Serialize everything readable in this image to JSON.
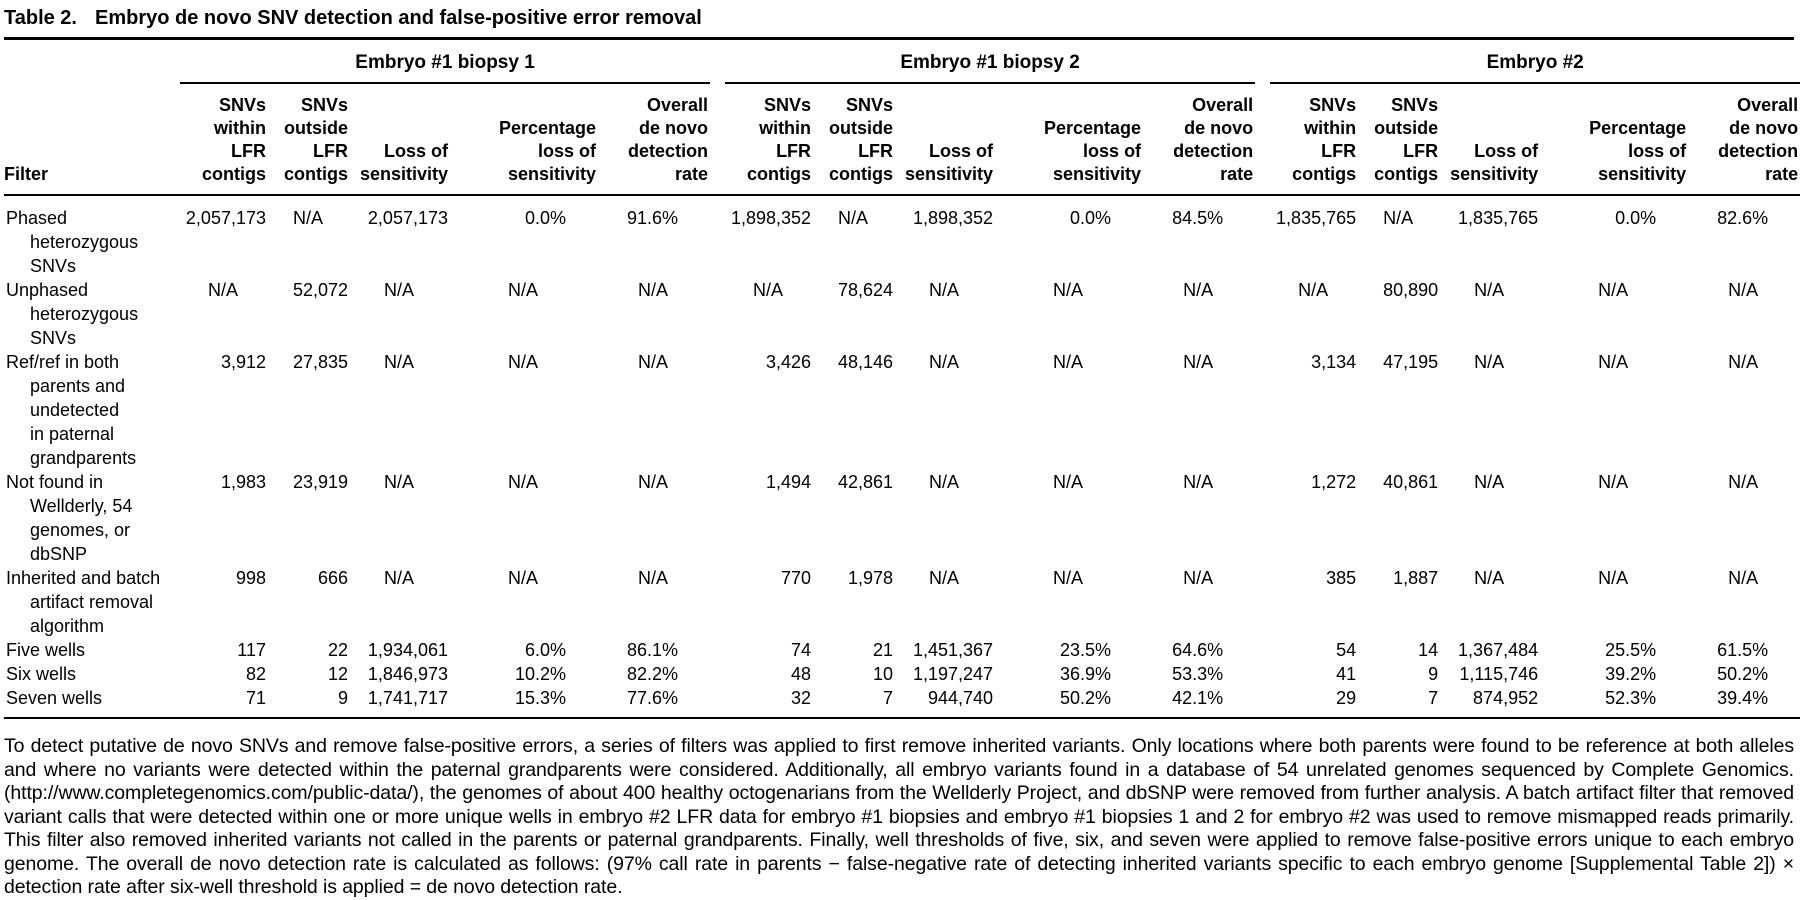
{
  "table": {
    "label": "Table 2.",
    "title": "Embryo de novo SNV detection and false-positive error removal",
    "filter_header": "Filter",
    "groups": [
      {
        "label": "Embryo #1 biopsy 1"
      },
      {
        "label": "Embryo #1 biopsy 2"
      },
      {
        "label": "Embryo #2"
      }
    ],
    "sub_headers": [
      "SNVs\nwithin\nLFR\ncontigs",
      "SNVs\noutside\nLFR\ncontigs",
      "Loss of\nsensitivity",
      "Percentage\nloss of\nsensitivity",
      "Overall\nde novo\ndetection\nrate"
    ],
    "rows": [
      {
        "filter": "Phased heterozygous\nSNVs",
        "values": [
          "2,057,173",
          "N/A",
          "2,057,173",
          "0.0%",
          "91.6%",
          "1,898,352",
          "N/A",
          "1,898,352",
          "0.0%",
          "84.5%",
          "1,835,765",
          "N/A",
          "1,835,765",
          "0.0%",
          "82.6%"
        ]
      },
      {
        "filter": "Unphased\nheterozygous\nSNVs",
        "values": [
          "N/A",
          "52,072",
          "N/A",
          "N/A",
          "N/A",
          "N/A",
          "78,624",
          "N/A",
          "N/A",
          "N/A",
          "N/A",
          "80,890",
          "N/A",
          "N/A",
          "N/A"
        ]
      },
      {
        "filter": "Ref/ref in both\nparents and\nundetected\nin paternal\ngrandparents",
        "values": [
          "3,912",
          "27,835",
          "N/A",
          "N/A",
          "N/A",
          "3,426",
          "48,146",
          "N/A",
          "N/A",
          "N/A",
          "3,134",
          "47,195",
          "N/A",
          "N/A",
          "N/A"
        ]
      },
      {
        "filter": "Not found in\nWellderly, 54\ngenomes, or\ndbSNP",
        "values": [
          "1,983",
          "23,919",
          "N/A",
          "N/A",
          "N/A",
          "1,494",
          "42,861",
          "N/A",
          "N/A",
          "N/A",
          "1,272",
          "40,861",
          "N/A",
          "N/A",
          "N/A"
        ]
      },
      {
        "filter": "Inherited and batch\nartifact removal\nalgorithm",
        "values": [
          "998",
          "666",
          "N/A",
          "N/A",
          "N/A",
          "770",
          "1,978",
          "N/A",
          "N/A",
          "N/A",
          "385",
          "1,887",
          "N/A",
          "N/A",
          "N/A"
        ]
      },
      {
        "filter": "Five wells",
        "values": [
          "117",
          "22",
          "1,934,061",
          "6.0%",
          "86.1%",
          "74",
          "21",
          "1,451,367",
          "23.5%",
          "64.6%",
          "54",
          "14",
          "1,367,484",
          "25.5%",
          "61.5%"
        ]
      },
      {
        "filter": "Six wells",
        "values": [
          "82",
          "12",
          "1,846,973",
          "10.2%",
          "82.2%",
          "48",
          "10",
          "1,197,247",
          "36.9%",
          "53.3%",
          "41",
          "9",
          "1,115,746",
          "39.2%",
          "50.2%"
        ]
      },
      {
        "filter": "Seven wells",
        "values": [
          "71",
          "9",
          "1,741,717",
          "15.3%",
          "77.6%",
          "32",
          "7",
          "944,740",
          "50.2%",
          "42.1%",
          "29",
          "7",
          "874,952",
          "52.3%",
          "39.4%"
        ]
      }
    ],
    "footnote": "To detect putative de novo SNVs and remove false-positive errors, a series of filters was applied to first remove inherited variants. Only locations where both parents were found to be reference at both alleles and where no variants were detected within the paternal grandparents were considered. Additionally, all embryo variants found in a database of 54 unrelated genomes sequenced by Complete Genomics. (http://www.completegenomics.com/public-data/), the genomes of about 400 healthy octogenarians from the Wellderly Project, and dbSNP were removed from further analysis. A batch artifact filter that removed variant calls that were detected within one or more unique wells in embryo #2 LFR data for embryo #1 biopsies and embryo #1 biopsies 1 and 2 for embryo #2 was used to remove mismapped reads primarily. This filter also removed inherited variants not called in the parents or paternal grandparents. Finally, well thresholds of five, six, and seven were applied to remove false-positive errors unique to each embryo genome. The overall de novo detection rate is calculated as follows: (97% call rate in parents − false-negative rate of detecting inherited variants specific to each embryo genome [Supplemental Table 2]) × detection rate after six-well threshold is applied = de novo detection rate."
  }
}
